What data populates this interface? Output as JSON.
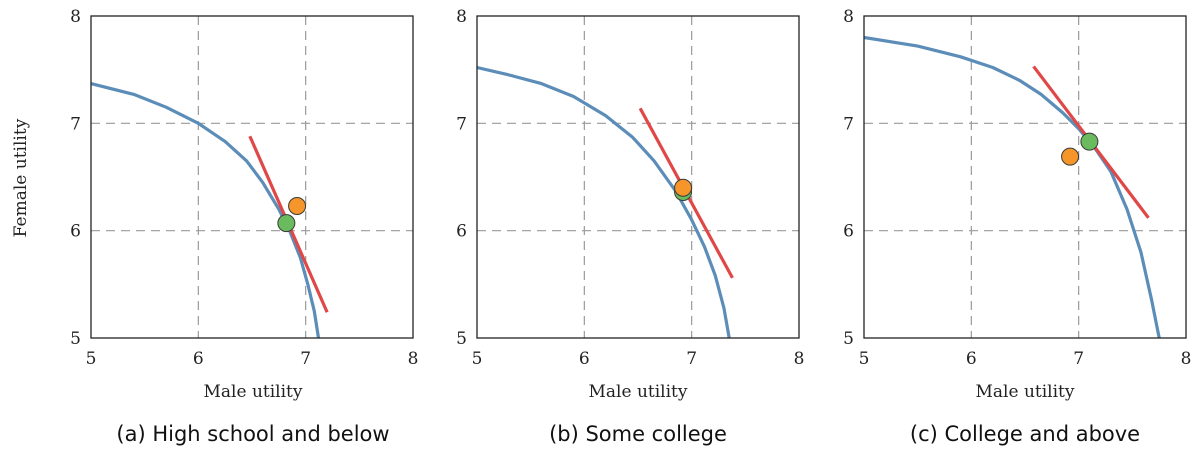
{
  "chart_data": [
    {
      "type": "line",
      "caption": "(a) High school and below",
      "xlabel": "Male utility",
      "ylabel": "Female utility",
      "xlim": [
        5,
        8
      ],
      "ylim": [
        5,
        8
      ],
      "xticks": [
        "5",
        "6",
        "7",
        "8"
      ],
      "yticks": [
        "5",
        "6",
        "7",
        "8"
      ],
      "grid": true,
      "frontier": {
        "color": "#5b8db8",
        "x": [
          5.0,
          5.4,
          5.7,
          6.0,
          6.25,
          6.45,
          6.6,
          6.75,
          6.85,
          6.95,
          7.02,
          7.08,
          7.12
        ],
        "y": [
          7.37,
          7.27,
          7.15,
          7.0,
          6.83,
          6.65,
          6.45,
          6.2,
          6.0,
          5.75,
          5.5,
          5.25,
          5.0
        ]
      },
      "tangent": {
        "color": "#e04848",
        "x": [
          6.48,
          7.2
        ],
        "y": [
          6.88,
          5.24
        ]
      },
      "points": [
        {
          "color": "#f5952a",
          "x": 6.92,
          "y": 6.23
        },
        {
          "color": "#6abb5e",
          "x": 6.82,
          "y": 6.07
        }
      ]
    },
    {
      "type": "line",
      "caption": "(b) Some college",
      "xlabel": "Male utility",
      "ylabel": "",
      "xlim": [
        5,
        8
      ],
      "ylim": [
        5,
        8
      ],
      "xticks": [
        "5",
        "6",
        "7",
        "8"
      ],
      "yticks": [
        "5",
        "6",
        "7",
        "8"
      ],
      "grid": true,
      "frontier": {
        "color": "#5b8db8",
        "x": [
          5.0,
          5.3,
          5.6,
          5.9,
          6.2,
          6.45,
          6.65,
          6.85,
          7.0,
          7.12,
          7.22,
          7.3,
          7.35
        ],
        "y": [
          7.52,
          7.45,
          7.37,
          7.25,
          7.07,
          6.87,
          6.65,
          6.37,
          6.1,
          5.85,
          5.58,
          5.28,
          5.0
        ]
      },
      "tangent": {
        "color": "#e04848",
        "x": [
          6.52,
          7.38
        ],
        "y": [
          7.14,
          5.56
        ]
      },
      "points": [
        {
          "color": "#6abb5e",
          "x": 6.92,
          "y": 6.36
        },
        {
          "color": "#f5952a",
          "x": 6.92,
          "y": 6.4
        }
      ]
    },
    {
      "type": "line",
      "caption": "(c) College and above",
      "xlabel": "Male utility",
      "ylabel": "",
      "xlim": [
        5,
        8
      ],
      "ylim": [
        5,
        8
      ],
      "xticks": [
        "5",
        "6",
        "7",
        "8"
      ],
      "yticks": [
        "5",
        "6",
        "7",
        "8"
      ],
      "grid": true,
      "frontier": {
        "color": "#5b8db8",
        "x": [
          5.0,
          5.5,
          5.9,
          6.2,
          6.45,
          6.65,
          6.85,
          7.0,
          7.15,
          7.3,
          7.45,
          7.58,
          7.68,
          7.75
        ],
        "y": [
          7.8,
          7.72,
          7.62,
          7.52,
          7.4,
          7.27,
          7.1,
          6.95,
          6.77,
          6.55,
          6.2,
          5.8,
          5.35,
          5.0
        ]
      },
      "tangent": {
        "color": "#e04848",
        "x": [
          6.58,
          7.65
        ],
        "y": [
          7.53,
          6.12
        ]
      },
      "points": [
        {
          "color": "#f5952a",
          "x": 6.92,
          "y": 6.69
        },
        {
          "color": "#6abb5e",
          "x": 7.1,
          "y": 6.83
        }
      ]
    }
  ]
}
